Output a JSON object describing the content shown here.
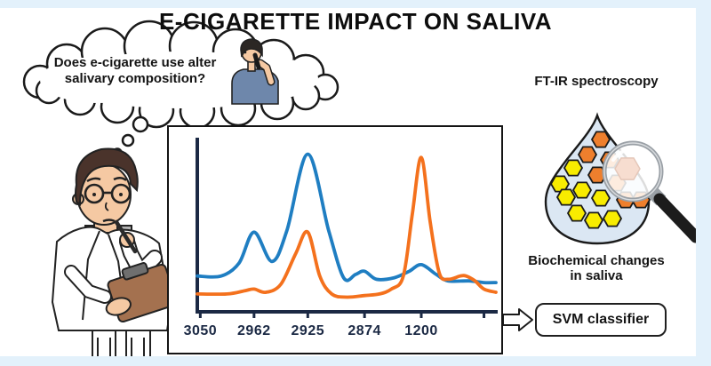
{
  "title": "E-CIGARETTE IMPACT ON SALIVA",
  "thought_bubble": {
    "line1": "Does e-cigarette use alter",
    "line2": "salivary composition?"
  },
  "right_panel": {
    "method_label": "FT-IR spectroscopy",
    "finding_line1": "Biochemical changes",
    "finding_line2": "in saliva",
    "classifier_label": "SVM classifier"
  },
  "icons": {
    "thought-cloud": "cloud-shaped thought bubble",
    "vaping-person": "man using e-cigarette",
    "scientist": "thinking scientist with clipboard",
    "saliva-droplet": "saliva drop with biomolecule hexagons",
    "magnifier": "magnifying glass",
    "flow-arrow": "hollow right arrow"
  },
  "colors": {
    "frame": "#e3f1fb",
    "axis": "#1b2944",
    "series_blue": "#1f7ec2",
    "series_orange": "#f4711d",
    "droplet_fill": "#dbe7f3",
    "hex_orange": "#ee7f2d",
    "hex_yellow": "#f8ec00",
    "shirt_blue": "#6e87ab",
    "coat_white": "#ffffff",
    "clipboard_brown": "#a4714f",
    "skin": "#f5c9a3"
  },
  "chart_data": {
    "type": "line",
    "title": "",
    "xlabel": "",
    "ylabel": "",
    "grid": false,
    "legend": false,
    "ylim": [
      0,
      100
    ],
    "x_ticks": [
      {
        "pos": 1,
        "label": "3050"
      },
      {
        "pos": 19,
        "label": "2962"
      },
      {
        "pos": 37,
        "label": "2925"
      },
      {
        "pos": 56,
        "label": "2874"
      },
      {
        "pos": 75,
        "label": "1200"
      },
      {
        "pos": 96,
        "label": ""
      }
    ],
    "series": [
      {
        "name": "blue-spectrum",
        "color": "#1f7ec2",
        "points": [
          [
            0,
            22
          ],
          [
            8,
            22
          ],
          [
            14,
            30
          ],
          [
            19,
            49
          ],
          [
            25,
            31
          ],
          [
            30,
            50
          ],
          [
            37,
            97
          ],
          [
            44,
            50
          ],
          [
            49,
            21
          ],
          [
            53,
            23
          ],
          [
            56,
            25
          ],
          [
            60,
            20
          ],
          [
            66,
            21
          ],
          [
            71,
            25
          ],
          [
            75,
            29
          ],
          [
            80,
            23
          ],
          [
            84,
            19
          ],
          [
            91,
            19
          ],
          [
            96,
            18
          ],
          [
            100,
            18
          ]
        ]
      },
      {
        "name": "orange-spectrum",
        "color": "#f4711d",
        "points": [
          [
            0,
            11
          ],
          [
            10,
            11
          ],
          [
            16,
            13
          ],
          [
            19,
            14
          ],
          [
            23,
            12
          ],
          [
            28,
            17
          ],
          [
            33,
            36
          ],
          [
            37,
            49
          ],
          [
            41,
            22
          ],
          [
            45,
            11
          ],
          [
            50,
            9
          ],
          [
            56,
            10
          ],
          [
            61,
            11
          ],
          [
            65,
            14
          ],
          [
            69,
            22
          ],
          [
            72,
            60
          ],
          [
            75,
            95
          ],
          [
            78,
            55
          ],
          [
            81,
            24
          ],
          [
            84,
            20
          ],
          [
            88,
            22
          ],
          [
            90,
            22
          ],
          [
            93,
            19
          ],
          [
            96,
            14
          ],
          [
            100,
            12
          ]
        ]
      }
    ]
  }
}
